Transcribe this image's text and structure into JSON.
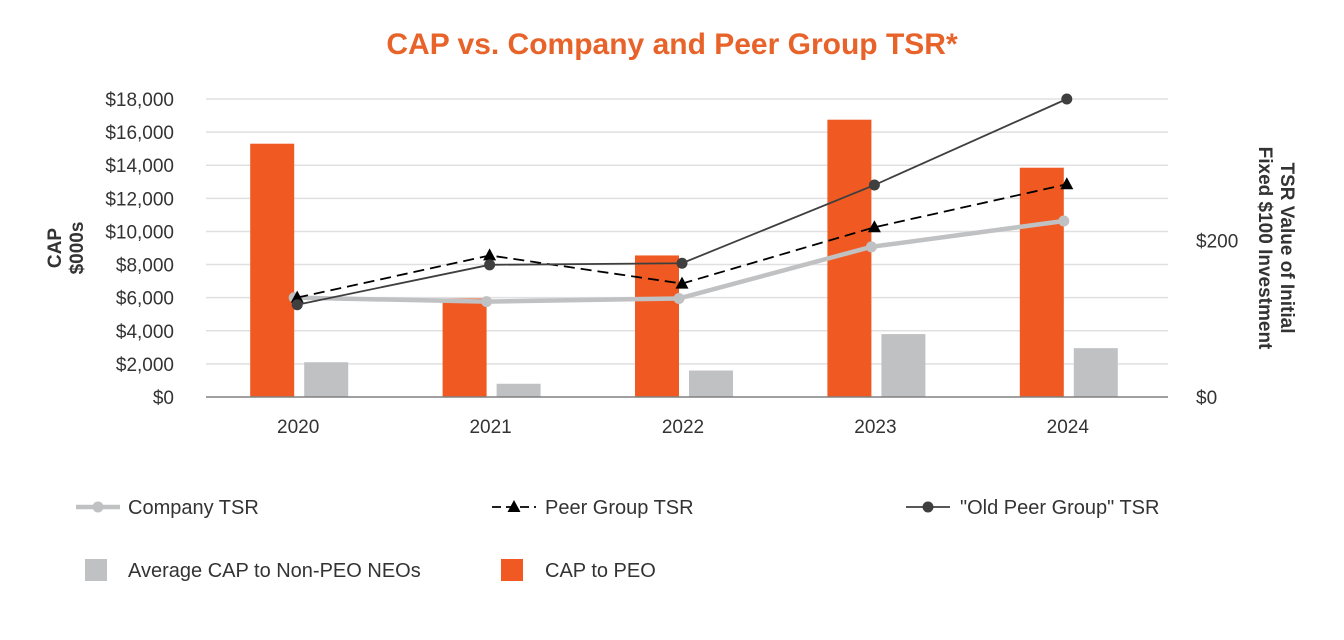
{
  "chart_data": {
    "type": "bar",
    "title": "CAP vs. Company and Peer Group TSR*",
    "categories": [
      "2020",
      "2021",
      "2022",
      "2023",
      "2024"
    ],
    "left_axis": {
      "label_line1": "CAP",
      "label_line2": "$000s",
      "range": [
        0,
        18000
      ],
      "ticks": [
        0,
        2000,
        4000,
        6000,
        8000,
        10000,
        12000,
        14000,
        16000,
        18000
      ],
      "tick_labels": [
        "$0",
        "$2,000",
        "$4,000",
        "$6,000",
        "$8,000",
        "$10,000",
        "$12,000",
        "$14,000",
        "$16,000",
        "$18,000"
      ]
    },
    "right_axis": {
      "label_line1": "TSR Value of Initial",
      "label_line2": "Fixed $100 Investment",
      "range": [
        0,
        381
      ],
      "ticks": [
        0,
        200
      ],
      "tick_labels": [
        "$0",
        "$200"
      ]
    },
    "grid": true,
    "bar_series": [
      {
        "name": "CAP to PEO",
        "color": "#f05a22",
        "values": [
          15300,
          5950,
          8550,
          16750,
          13850
        ]
      },
      {
        "name": "Average CAP to Non-PEO NEOs",
        "color": "#c0c1c3",
        "values": [
          2100,
          800,
          1600,
          3800,
          2950
        ]
      }
    ],
    "line_series": [
      {
        "name": "Company TSR",
        "color": "#c0c1c3",
        "style": "solid-thick",
        "marker": "circle",
        "values": [
          127,
          122,
          126,
          192,
          225
        ]
      },
      {
        "name": "Peer Group TSR",
        "color": "#000000",
        "style": "dashed",
        "marker": "triangle",
        "values": [
          127,
          181,
          145,
          217,
          272
        ]
      },
      {
        "name": "\"Old Peer Group\" TSR",
        "color": "#3f3f3f",
        "style": "solid",
        "marker": "circle",
        "values": [
          118,
          169,
          171,
          271,
          381
        ]
      }
    ],
    "legend": {
      "placement": "bottom",
      "row1": [
        "Company TSR",
        "Peer Group TSR",
        "\"Old Peer Group\" TSR"
      ],
      "row2": [
        "Average CAP to Non-PEO NEOs",
        "CAP to PEO"
      ]
    },
    "colors": {
      "title": "#e8632a",
      "grid": "#e0e0e0",
      "axis": "#808080"
    }
  }
}
